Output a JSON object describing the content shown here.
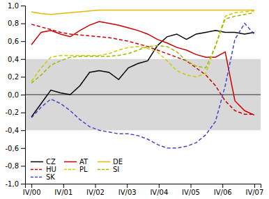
{
  "chart_data": {
    "type": "line",
    "x": [
      0,
      0.30434782608695654,
      0.6086956521739131,
      0.9130434782608696,
      1.2173913043478262,
      1.5217391304347827,
      1.8260869565217392,
      2.130434782608696,
      2.4347826086956523,
      2.739130434782609,
      3.0434782608695654,
      3.347826086956522,
      3.6521739130434785,
      3.956521739130435,
      4.260869565217392,
      4.565217391304348,
      4.869565217391305,
      5.173913043478261,
      5.478260869565218,
      5.782608695652174,
      6.086956521739131,
      6.391304347826087,
      6.695652173913044,
      7
    ],
    "xlim": [
      -0.2,
      7.2
    ],
    "xticks": [
      {
        "value": 0,
        "label": "IV/00"
      },
      {
        "value": 1,
        "label": "IV/01"
      },
      {
        "value": 2,
        "label": "IV/02"
      },
      {
        "value": 3,
        "label": "IV/03"
      },
      {
        "value": 4,
        "label": "IV/04"
      },
      {
        "value": 5,
        "label": "IV/05"
      },
      {
        "value": 6,
        "label": "IV/06"
      },
      {
        "value": 7,
        "label": "IV/07"
      }
    ],
    "ylim": [
      -1.0,
      1.0
    ],
    "yticks": [
      {
        "value": -1.0,
        "label": "-1,0"
      },
      {
        "value": -0.8,
        "label": "-0,8"
      },
      {
        "value": -0.6,
        "label": "-0,6"
      },
      {
        "value": -0.4,
        "label": "-0,4"
      },
      {
        "value": -0.2,
        "label": "-0,2"
      },
      {
        "value": 0.0,
        "label": "0,0"
      },
      {
        "value": 0.2,
        "label": "0,2"
      },
      {
        "value": 0.4,
        "label": "0,4"
      },
      {
        "value": 0.6,
        "label": "0,6"
      },
      {
        "value": 0.8,
        "label": "0,8"
      },
      {
        "value": 1.0,
        "label": "1,0"
      }
    ],
    "grid": false,
    "legend": "lower left",
    "shaded_region": {
      "from": -0.4,
      "to": 0.4,
      "color": "#d8d8d8"
    },
    "hlines": [
      0
    ],
    "series": [
      {
        "name": "CZ",
        "color": "#000000",
        "line_style": "solid",
        "values": [
          -0.25,
          -0.1,
          0.05,
          0.02,
          0.0,
          0.1,
          0.25,
          0.27,
          0.25,
          0.17,
          0.3,
          0.35,
          0.38,
          0.55,
          0.65,
          0.68,
          0.62,
          0.68,
          0.7,
          0.72,
          0.7,
          0.7,
          0.68,
          0.7
        ]
      },
      {
        "name": "AT",
        "color": "#cc0000",
        "line_style": "solid",
        "values": [
          0.56,
          0.7,
          0.72,
          0.68,
          0.65,
          0.72,
          0.78,
          0.82,
          0.8,
          0.78,
          0.75,
          0.72,
          0.68,
          0.62,
          0.58,
          0.53,
          0.5,
          0.45,
          0.42,
          0.42,
          0.48,
          -0.07,
          -0.18,
          -0.23
        ]
      },
      {
        "name": "DE",
        "color": "#e8b800",
        "line_style": "solid",
        "values": [
          0.93,
          0.91,
          0.9,
          0.91,
          0.92,
          0.93,
          0.94,
          0.95,
          0.95,
          0.95,
          0.95,
          0.95,
          0.95,
          0.95,
          0.95,
          0.95,
          0.95,
          0.95,
          0.95,
          0.95,
          0.95,
          0.95,
          0.95,
          0.95
        ]
      },
      {
        "name": "HU",
        "color": "#cc0000",
        "line_style": "dashed",
        "values": [
          0.79,
          0.76,
          0.73,
          0.7,
          0.68,
          0.67,
          0.66,
          0.65,
          0.64,
          0.62,
          0.6,
          0.57,
          0.54,
          0.5,
          0.46,
          0.42,
          0.38,
          0.3,
          0.22,
          0.1,
          -0.07,
          -0.18,
          -0.22,
          -0.22
        ]
      },
      {
        "name": "PL",
        "color": "#cccc00",
        "line_style": "dashed",
        "values": [
          0.15,
          0.3,
          0.42,
          0.44,
          0.44,
          0.44,
          0.44,
          0.44,
          0.46,
          0.5,
          0.53,
          0.54,
          0.52,
          0.48,
          0.38,
          0.27,
          0.22,
          0.2,
          0.24,
          0.55,
          0.88,
          0.92,
          0.93,
          0.94
        ]
      },
      {
        "name": "SI",
        "color": "#99bb00",
        "line_style": "dashed",
        "values": [
          0.13,
          0.22,
          0.33,
          0.38,
          0.42,
          0.43,
          0.43,
          0.43,
          0.43,
          0.44,
          0.46,
          0.5,
          0.54,
          0.55,
          0.54,
          0.48,
          0.38,
          0.32,
          0.3,
          0.55,
          0.85,
          0.88,
          0.9,
          0.92
        ]
      },
      {
        "name": "SK",
        "color": "#4444cc",
        "line_style": "dashed",
        "values": [
          -0.26,
          -0.14,
          -0.05,
          -0.1,
          -0.18,
          -0.28,
          -0.36,
          -0.4,
          -0.42,
          -0.44,
          -0.44,
          -0.46,
          -0.5,
          -0.56,
          -0.6,
          -0.6,
          -0.58,
          -0.54,
          -0.45,
          -0.3,
          0.1,
          0.62,
          0.8,
          0.68
        ]
      }
    ]
  }
}
